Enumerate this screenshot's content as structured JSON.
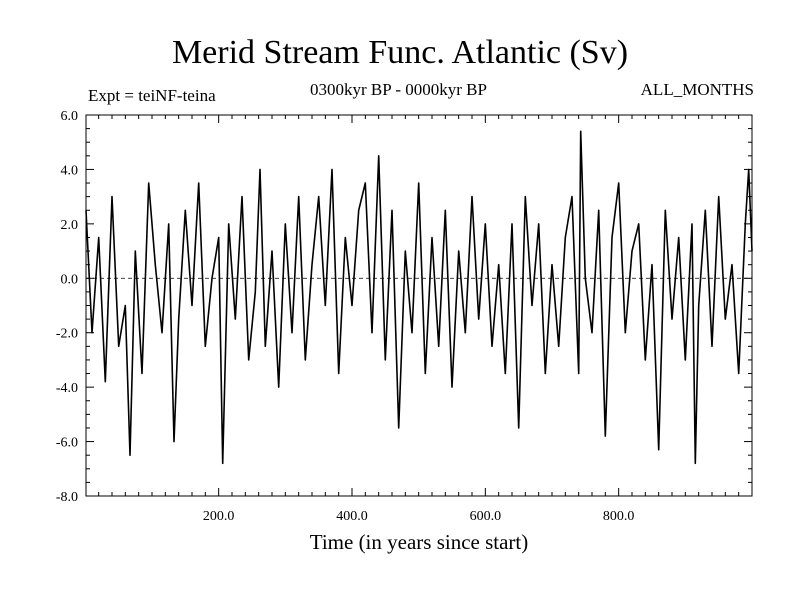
{
  "chart_data": {
    "type": "line",
    "title": "Merid Stream Func. Atlantic (Sv)",
    "subtitle_left": "Expt = teiNF-teina",
    "subtitle_center": "0300kyr BP - 0000kyr BP",
    "subtitle_right": "ALL_MONTHS",
    "xlabel": "Time (in years since start)",
    "ylabel": "",
    "xlim": [
      1,
      1000
    ],
    "ylim": [
      -8.0,
      6.0
    ],
    "xticks": [
      200,
      400,
      600,
      800
    ],
    "xtick_labels": [
      "200.0",
      "400.0",
      "600.0",
      "800.0"
    ],
    "yticks": [
      6,
      4,
      2,
      0,
      -2,
      -4,
      -6,
      -8
    ],
    "ytick_labels": [
      "6.0",
      "4.0",
      "2.0",
      "0.0",
      "-2.0",
      "-4.0",
      "-6.0",
      "-8.0"
    ],
    "zero_line": "dashed",
    "line_color": "#000000",
    "series": [
      {
        "x": [
          1,
          10,
          20,
          30,
          40,
          50,
          60,
          67,
          75,
          85,
          95,
          105,
          115,
          125,
          133,
          140,
          150,
          160,
          170,
          180,
          190,
          200,
          206,
          215,
          225,
          235,
          245,
          255,
          262,
          270,
          280,
          290,
          300,
          310,
          320,
          330,
          340,
          350,
          360,
          370,
          380,
          390,
          400,
          410,
          420,
          430,
          440,
          450,
          460,
          470,
          480,
          490,
          500,
          510,
          520,
          530,
          540,
          550,
          560,
          570,
          580,
          590,
          600,
          610,
          620,
          630,
          640,
          650,
          660,
          670,
          680,
          690,
          700,
          710,
          720,
          730,
          740,
          743,
          750,
          760,
          770,
          780,
          790,
          800,
          810,
          820,
          830,
          840,
          850,
          860,
          870,
          880,
          890,
          900,
          910,
          915,
          920,
          930,
          940,
          950,
          960,
          970,
          980,
          990,
          995,
          1000
        ],
        "y": [
          2.5,
          -2.0,
          1.5,
          -3.8,
          3.0,
          -2.5,
          -1.0,
          -6.5,
          1.0,
          -3.5,
          3.5,
          0.5,
          -2.0,
          2.0,
          -6.0,
          -1.5,
          2.5,
          -1.0,
          3.5,
          -2.5,
          0.0,
          1.5,
          -6.8,
          2.0,
          -1.5,
          3.0,
          -3.0,
          -0.5,
          4.0,
          -2.5,
          1.0,
          -4.0,
          2.0,
          -2.0,
          3.0,
          -3.0,
          0.5,
          3.0,
          -1.0,
          4.0,
          -3.5,
          1.5,
          -1.0,
          2.5,
          3.5,
          -2.0,
          4.5,
          -3.0,
          2.5,
          -5.5,
          1.0,
          -2.0,
          3.5,
          -3.5,
          1.5,
          -2.5,
          2.5,
          -4.0,
          1.0,
          -2.0,
          3.0,
          -1.5,
          2.0,
          -2.5,
          0.5,
          -3.5,
          2.0,
          -5.5,
          3.0,
          -1.0,
          2.0,
          -3.5,
          0.5,
          -2.5,
          1.5,
          3.0,
          -3.5,
          5.4,
          0.0,
          -2.0,
          2.5,
          -5.8,
          1.5,
          3.5,
          -2.0,
          1.0,
          2.0,
          -3.0,
          0.5,
          -6.3,
          2.5,
          -1.5,
          1.5,
          -3.0,
          2.0,
          -6.8,
          -1.0,
          2.5,
          -2.5,
          3.0,
          -1.5,
          0.5,
          -3.5,
          2.0,
          4.0,
          1.0
        ]
      }
    ]
  }
}
